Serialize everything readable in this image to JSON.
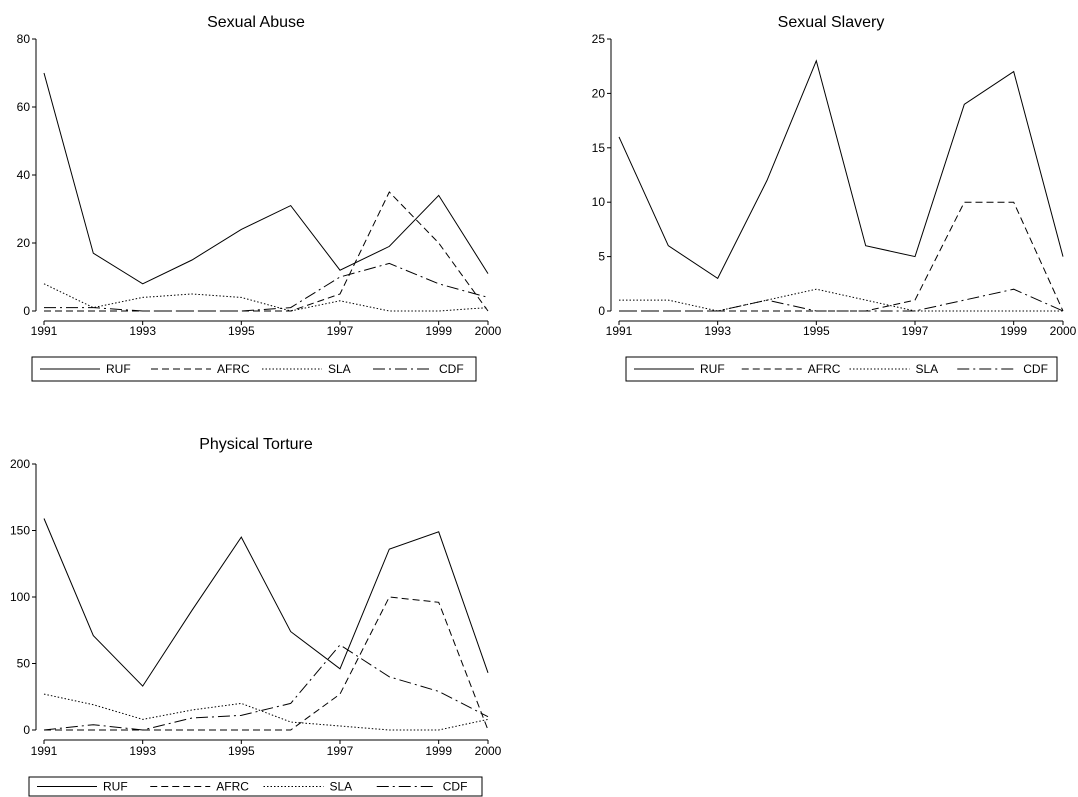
{
  "chart_data": [
    {
      "type": "line",
      "title": "Sexual Abuse",
      "x_ticks": [
        "1991",
        "1993",
        "1995",
        "1997",
        "1999",
        "2000"
      ],
      "y_ticks": [
        "0",
        "20",
        "40",
        "60",
        "80"
      ],
      "ylim": [
        0,
        80
      ],
      "xlim": [
        1991,
        2000
      ],
      "legend": "bottom",
      "x": [
        1991,
        1992,
        1993,
        1994,
        1995,
        1996,
        1997,
        1998,
        1999,
        2000
      ],
      "series": [
        {
          "name": "RUF",
          "style": "solid",
          "values": [
            70,
            17,
            8,
            15,
            24,
            31,
            12,
            19,
            34,
            11
          ]
        },
        {
          "name": "AFRC",
          "style": "dashed",
          "values": [
            0,
            0,
            0,
            0,
            0,
            0,
            5,
            35,
            20,
            0
          ]
        },
        {
          "name": "SLA",
          "style": "dotted",
          "values": [
            8,
            1,
            4,
            5,
            4,
            0,
            3,
            0,
            0,
            1
          ]
        },
        {
          "name": "CDF",
          "style": "dashdot",
          "values": [
            1,
            1,
            0,
            0,
            0,
            1,
            10,
            14,
            8,
            4
          ]
        }
      ]
    },
    {
      "type": "line",
      "title": "Sexual Slavery",
      "x_ticks": [
        "1991",
        "1993",
        "1995",
        "1997",
        "1999",
        "2000"
      ],
      "y_ticks": [
        "0",
        "5",
        "10",
        "15",
        "20",
        "25"
      ],
      "ylim": [
        0,
        25
      ],
      "xlim": [
        1991,
        2000
      ],
      "legend": "bottom",
      "x": [
        1991,
        1992,
        1993,
        1994,
        1995,
        1996,
        1997,
        1998,
        1999,
        2000
      ],
      "series": [
        {
          "name": "RUF",
          "style": "solid",
          "values": [
            16,
            6,
            3,
            12,
            23,
            6,
            5,
            19,
            22,
            5
          ]
        },
        {
          "name": "AFRC",
          "style": "dashed",
          "values": [
            0,
            0,
            0,
            0,
            0,
            0,
            1,
            10,
            10,
            0
          ]
        },
        {
          "name": "SLA",
          "style": "dotted",
          "values": [
            1,
            1,
            0,
            1,
            2,
            1,
            0,
            0,
            0,
            0
          ]
        },
        {
          "name": "CDF",
          "style": "dashdot",
          "values": [
            0,
            0,
            0,
            1,
            0,
            0,
            0,
            1,
            2,
            0
          ]
        }
      ]
    },
    {
      "type": "line",
      "title": "Physical Torture",
      "x_ticks": [
        "1991",
        "1993",
        "1995",
        "1997",
        "1999",
        "2000"
      ],
      "y_ticks": [
        "0",
        "50",
        "100",
        "150",
        "200"
      ],
      "ylim": [
        0,
        200
      ],
      "xlim": [
        1991,
        2000
      ],
      "legend": "bottom",
      "x": [
        1991,
        1992,
        1993,
        1994,
        1995,
        1996,
        1997,
        1998,
        1999,
        2000
      ],
      "series": [
        {
          "name": "RUF",
          "style": "solid",
          "values": [
            159,
            71,
            33,
            90,
            145,
            74,
            46,
            136,
            149,
            43
          ]
        },
        {
          "name": "AFRC",
          "style": "dashed",
          "values": [
            0,
            0,
            0,
            0,
            0,
            0,
            27,
            100,
            96,
            0
          ]
        },
        {
          "name": "SLA",
          "style": "dotted",
          "values": [
            27,
            19,
            8,
            15,
            20,
            6,
            3,
            0,
            0,
            8
          ]
        },
        {
          "name": "CDF",
          "style": "dashdot",
          "values": [
            0,
            4,
            0,
            9,
            11,
            20,
            64,
            40,
            29,
            10
          ]
        }
      ]
    }
  ]
}
